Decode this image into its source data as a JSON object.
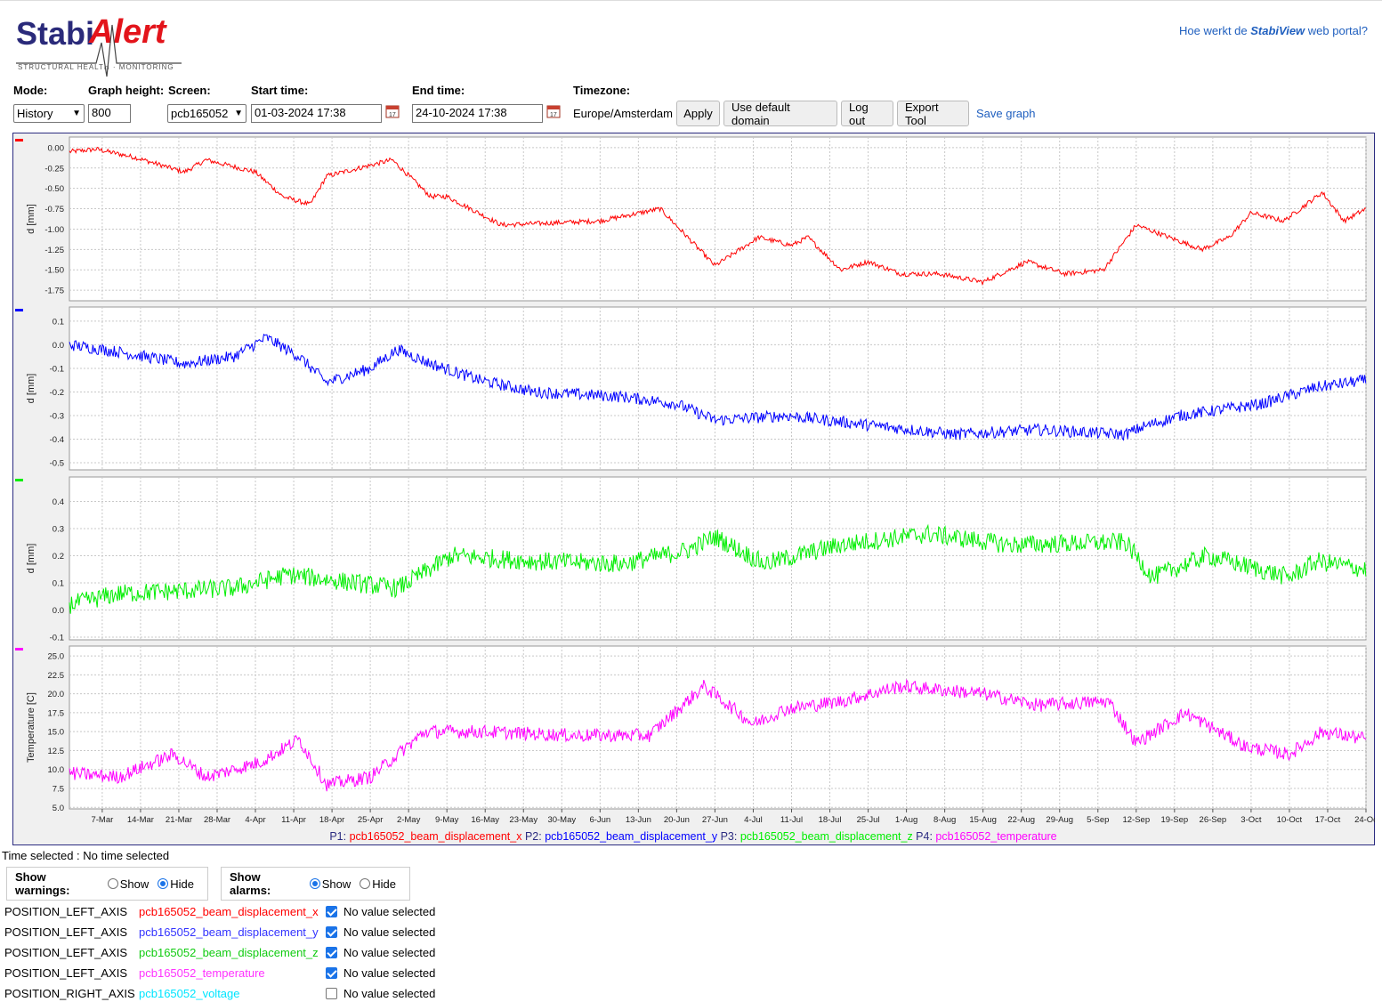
{
  "logo": {
    "brand_part1": "Stabi",
    "brand_part2": "Alert",
    "tagline": "STRUCTURAL HEALTH · MONITORING"
  },
  "header": {
    "help_prefix": "Hoe werkt de ",
    "help_brand": "StabiView",
    "help_suffix": " web portal?"
  },
  "controls": {
    "mode_label": "Mode:",
    "mode_value": "History",
    "graph_height_label": "Graph height:",
    "graph_height_value": "800",
    "screen_label": "Screen:",
    "screen_value": "pcb165052",
    "start_label": "Start time:",
    "start_value": "01-03-2024 17:38",
    "end_label": "End time:",
    "end_value": "24-10-2024 17:38",
    "timezone_label": "Timezone:",
    "timezone_value": "Europe/Amsterdam",
    "apply": "Apply",
    "default_domain": "Use default domain",
    "logout": "Log out",
    "export": "Export Tool",
    "save_graph": "Save graph",
    "calendar_icon": "calendar-icon"
  },
  "chart_data": {
    "type": "line",
    "x_ticks": [
      "7-Mar",
      "14-Mar",
      "21-Mar",
      "28-Mar",
      "4-Apr",
      "11-Apr",
      "18-Apr",
      "25-Apr",
      "2-May",
      "9-May",
      "16-May",
      "23-May",
      "30-May",
      "6-Jun",
      "13-Jun",
      "20-Jun",
      "27-Jun",
      "4-Jul",
      "11-Jul",
      "18-Jul",
      "25-Jul",
      "1-Aug",
      "8-Aug",
      "15-Aug",
      "22-Aug",
      "29-Aug",
      "5-Sep",
      "12-Sep",
      "19-Sep",
      "26-Sep",
      "3-Oct",
      "10-Oct",
      "17-Oct",
      "24-Oc"
    ],
    "x_start": "2024-03-01",
    "x_end": "2024-10-24",
    "grid": true,
    "legend": [
      {
        "prefix": "P1: ",
        "name": "pcb165052_beam_displacement_x",
        "color": "#ff0000"
      },
      {
        "prefix": "P2: ",
        "name": "pcb165052_beam_displacement_y",
        "color": "#0000ff"
      },
      {
        "prefix": "P3: ",
        "name": "pcb165052_beam_displacement_z",
        "color": "#00ee00"
      },
      {
        "prefix": "P4: ",
        "name": "pcb165052_temperature",
        "color": "#ff00ff"
      }
    ],
    "panels": [
      {
        "series": "pcb165052_beam_displacement_x",
        "color": "#ff0000",
        "ylabel": "d [mm]",
        "yticks": [
          "0.00",
          "-0.25",
          "-0.50",
          "-0.75",
          "-1.00",
          "-1.25",
          "-1.50",
          "-1.75"
        ],
        "ylim": [
          -1.88,
          0.13
        ],
        "noise": 0.03,
        "x": [
          "2024-03-01",
          "2024-03-06",
          "2024-03-13",
          "2024-03-22",
          "2024-03-26",
          "2024-04-04",
          "2024-04-09",
          "2024-04-14",
          "2024-04-17",
          "2024-04-29",
          "2024-05-06",
          "2024-05-09",
          "2024-05-19",
          "2024-06-06",
          "2024-06-17",
          "2024-06-27",
          "2024-07-05",
          "2024-07-11",
          "2024-07-14",
          "2024-07-20",
          "2024-07-25",
          "2024-07-31",
          "2024-08-07",
          "2024-08-15",
          "2024-08-23",
          "2024-08-30",
          "2024-09-06",
          "2024-09-12",
          "2024-09-24",
          "2024-09-29",
          "2024-10-03",
          "2024-10-09",
          "2024-10-16",
          "2024-10-20",
          "2024-10-24"
        ],
        "y": [
          -0.05,
          -0.02,
          -0.12,
          -0.3,
          -0.15,
          -0.3,
          -0.6,
          -0.7,
          -0.35,
          -0.15,
          -0.6,
          -0.6,
          -0.95,
          -0.9,
          -0.75,
          -1.45,
          -1.1,
          -1.2,
          -1.1,
          -1.5,
          -1.4,
          -1.55,
          -1.55,
          -1.65,
          -1.4,
          -1.55,
          -1.5,
          -0.95,
          -1.25,
          -1.1,
          -0.8,
          -0.9,
          -0.55,
          -0.9,
          -0.75
        ]
      },
      {
        "series": "pcb165052_beam_displacement_y",
        "color": "#0000ff",
        "ylabel": "d [mm]",
        "yticks": [
          "0.1",
          "0.0",
          "-0.1",
          "-0.2",
          "-0.3",
          "-0.4",
          "-0.5"
        ],
        "ylim": [
          -0.53,
          0.16
        ],
        "noise": 0.025,
        "x": [
          "2024-03-01",
          "2024-03-10",
          "2024-03-22",
          "2024-03-31",
          "2024-04-06",
          "2024-04-12",
          "2024-04-17",
          "2024-04-25",
          "2024-04-30",
          "2024-05-06",
          "2024-05-15",
          "2024-05-25",
          "2024-06-10",
          "2024-06-20",
          "2024-06-27",
          "2024-07-10",
          "2024-07-25",
          "2024-08-10",
          "2024-08-25",
          "2024-09-10",
          "2024-09-13",
          "2024-09-20",
          "2024-10-05",
          "2024-10-15",
          "2024-10-24"
        ],
        "y": [
          0.0,
          -0.03,
          -0.08,
          -0.05,
          0.03,
          -0.05,
          -0.16,
          -0.1,
          -0.02,
          -0.08,
          -0.15,
          -0.2,
          -0.22,
          -0.25,
          -0.32,
          -0.3,
          -0.34,
          -0.38,
          -0.36,
          -0.38,
          -0.35,
          -0.3,
          -0.25,
          -0.18,
          -0.15
        ]
      },
      {
        "series": "pcb165052_beam_displacement_z",
        "color": "#00ee00",
        "ylabel": "d [mm]",
        "yticks": [
          "0.4",
          "0.3",
          "0.2",
          "0.1",
          "0.0",
          "-0.1"
        ],
        "ylim": [
          -0.11,
          0.49
        ],
        "noise": 0.035,
        "x": [
          "2024-03-01",
          "2024-03-10",
          "2024-03-31",
          "2024-04-10",
          "2024-04-30",
          "2024-05-10",
          "2024-05-25",
          "2024-06-10",
          "2024-06-22",
          "2024-06-27",
          "2024-07-06",
          "2024-07-20",
          "2024-08-05",
          "2024-08-20",
          "2024-09-10",
          "2024-09-15",
          "2024-09-25",
          "2024-10-10",
          "2024-10-15",
          "2024-10-24"
        ],
        "y": [
          0.02,
          0.06,
          0.08,
          0.13,
          0.08,
          0.2,
          0.18,
          0.17,
          0.22,
          0.27,
          0.17,
          0.24,
          0.28,
          0.24,
          0.25,
          0.12,
          0.2,
          0.12,
          0.18,
          0.15
        ]
      },
      {
        "series": "pcb165052_temperature",
        "color": "#ff00ff",
        "ylabel": "Temperature [C]",
        "yticks": [
          "25.0",
          "22.5",
          "20.0",
          "17.5",
          "15.0",
          "12.5",
          "10.0",
          "7.5",
          "5.0"
        ],
        "ylim": [
          4.8,
          26.3
        ],
        "noise": 0.9,
        "x": [
          "2024-03-01",
          "2024-03-10",
          "2024-03-20",
          "2024-03-26",
          "2024-04-05",
          "2024-04-12",
          "2024-04-17",
          "2024-04-25",
          "2024-05-05",
          "2024-05-15",
          "2024-06-01",
          "2024-06-15",
          "2024-06-25",
          "2024-07-04",
          "2024-07-10",
          "2024-07-20",
          "2024-07-31",
          "2024-08-15",
          "2024-08-25",
          "2024-09-07",
          "2024-09-12",
          "2024-09-21",
          "2024-10-02",
          "2024-10-10",
          "2024-10-16",
          "2024-10-24"
        ],
        "y": [
          9.5,
          9,
          12,
          9,
          11,
          14,
          8,
          9,
          15,
          15,
          14.5,
          14.5,
          21,
          16,
          18,
          19,
          21,
          20,
          18.5,
          19,
          13.5,
          17.5,
          13,
          12,
          15,
          14
        ]
      }
    ]
  },
  "status": {
    "time_selected": "Time selected : No time selected"
  },
  "warnings": {
    "label": "Show warnings:",
    "show": "Show",
    "hide": "Hide",
    "selected": "hide"
  },
  "alarms": {
    "label": "Show alarms:",
    "show": "Show",
    "hide": "Hide",
    "selected": "show"
  },
  "series_list": [
    {
      "axis": "POSITION_LEFT_AXIS",
      "name": "pcb165052_beam_displacement_x",
      "color": "#ff0000",
      "checked": true,
      "value": "No value selected"
    },
    {
      "axis": "POSITION_LEFT_AXIS",
      "name": "pcb165052_beam_displacement_y",
      "color": "#3333ff",
      "checked": true,
      "value": "No value selected"
    },
    {
      "axis": "POSITION_LEFT_AXIS",
      "name": "pcb165052_beam_displacement_z",
      "color": "#11cc11",
      "checked": true,
      "value": "No value selected"
    },
    {
      "axis": "POSITION_LEFT_AXIS",
      "name": "pcb165052_temperature",
      "color": "#ff33ff",
      "checked": true,
      "value": "No value selected"
    },
    {
      "axis": "POSITION_RIGHT_AXIS",
      "name": "pcb165052_voltage",
      "color": "#00e5ff",
      "checked": false,
      "value": "No value selected"
    }
  ]
}
